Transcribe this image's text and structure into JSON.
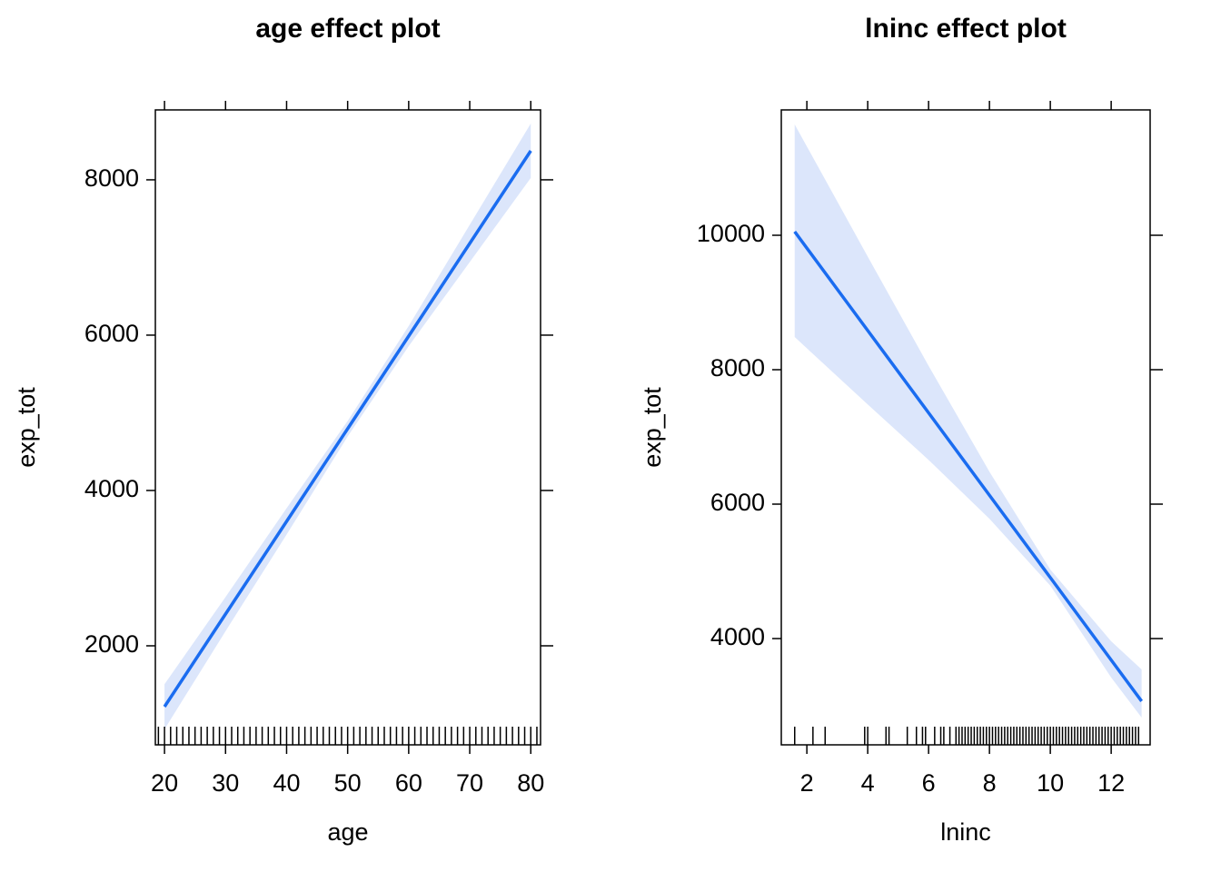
{
  "chart_data": [
    {
      "type": "line",
      "title": "age effect plot",
      "xlabel": "age",
      "ylabel": "exp_tot",
      "x": [
        20,
        30,
        40,
        50,
        60,
        70,
        80
      ],
      "values": [
        1216,
        2409,
        3602,
        4795,
        5988,
        7181,
        8374
      ],
      "lower": [
        926,
        2189,
        3432,
        4695,
        5858,
        6941,
        8024
      ],
      "upper": [
        1506,
        2629,
        3772,
        4895,
        6118,
        7421,
        8724
      ],
      "color": "#1a6cf0",
      "band_color": "#dce6fb",
      "rug": [
        19,
        20,
        21,
        22,
        23,
        24,
        25,
        26,
        27,
        28,
        29,
        30,
        31,
        32,
        33,
        34,
        35,
        36,
        37,
        38,
        39,
        40,
        41,
        42,
        43,
        44,
        45,
        46,
        47,
        48,
        49,
        50,
        51,
        52,
        53,
        54,
        55,
        56,
        57,
        58,
        59,
        60,
        61,
        62,
        63,
        64,
        65,
        66,
        67,
        68,
        69,
        70,
        71,
        72,
        73,
        74,
        75,
        76,
        77,
        78,
        79,
        80,
        81
      ],
      "xlim": [
        18.5,
        81.6
      ],
      "ylim": [
        725,
        8900
      ],
      "xticks": [
        20,
        30,
        40,
        50,
        60,
        70,
        80
      ],
      "yticks": [
        2000,
        4000,
        6000,
        8000
      ]
    },
    {
      "type": "line",
      "title": "lninc effect plot",
      "xlabel": "lninc",
      "ylabel": "exp_tot",
      "x": [
        1.6,
        4,
        6,
        8,
        10,
        12,
        13
      ],
      "values": [
        10054,
        8583,
        7358,
        6132,
        4907,
        3681,
        3068
      ],
      "lower": [
        8486,
        7483,
        6658,
        5782,
        4787,
        3420,
        2824
      ],
      "upper": [
        11649,
        9683,
        8058,
        6482,
        5027,
        3960,
        3541
      ],
      "color": "#1a6cf0",
      "band_color": "#dce6fb",
      "rug": [
        1.6,
        2.2,
        2.6,
        3.9,
        4.0,
        4.6,
        4.7,
        5.3,
        5.6,
        5.8,
        5.9,
        6.2,
        6.4,
        6.5,
        6.7,
        6.9,
        7.0,
        7.1,
        7.2,
        7.3,
        7.4,
        7.5,
        7.6,
        7.7,
        7.8,
        7.9,
        8.0,
        8.1,
        8.2,
        8.3,
        8.4,
        8.5,
        8.6,
        8.7,
        8.8,
        8.9,
        9.0,
        9.1,
        9.2,
        9.3,
        9.4,
        9.5,
        9.6,
        9.7,
        9.8,
        9.9,
        10.0,
        10.1,
        10.2,
        10.3,
        10.4,
        10.5,
        10.6,
        10.7,
        10.8,
        10.9,
        11.0,
        11.1,
        11.2,
        11.3,
        11.4,
        11.5,
        11.6,
        11.7,
        11.8,
        11.9,
        12.0,
        12.1,
        12.2,
        12.3,
        12.4,
        12.5,
        12.6,
        12.7,
        12.8,
        12.9
      ],
      "xlim": [
        1.16,
        13.28
      ],
      "ylim": [
        2419,
        11865
      ],
      "xticks": [
        2,
        4,
        6,
        8,
        10,
        12
      ],
      "yticks": [
        4000,
        6000,
        8000,
        10000
      ]
    }
  ]
}
